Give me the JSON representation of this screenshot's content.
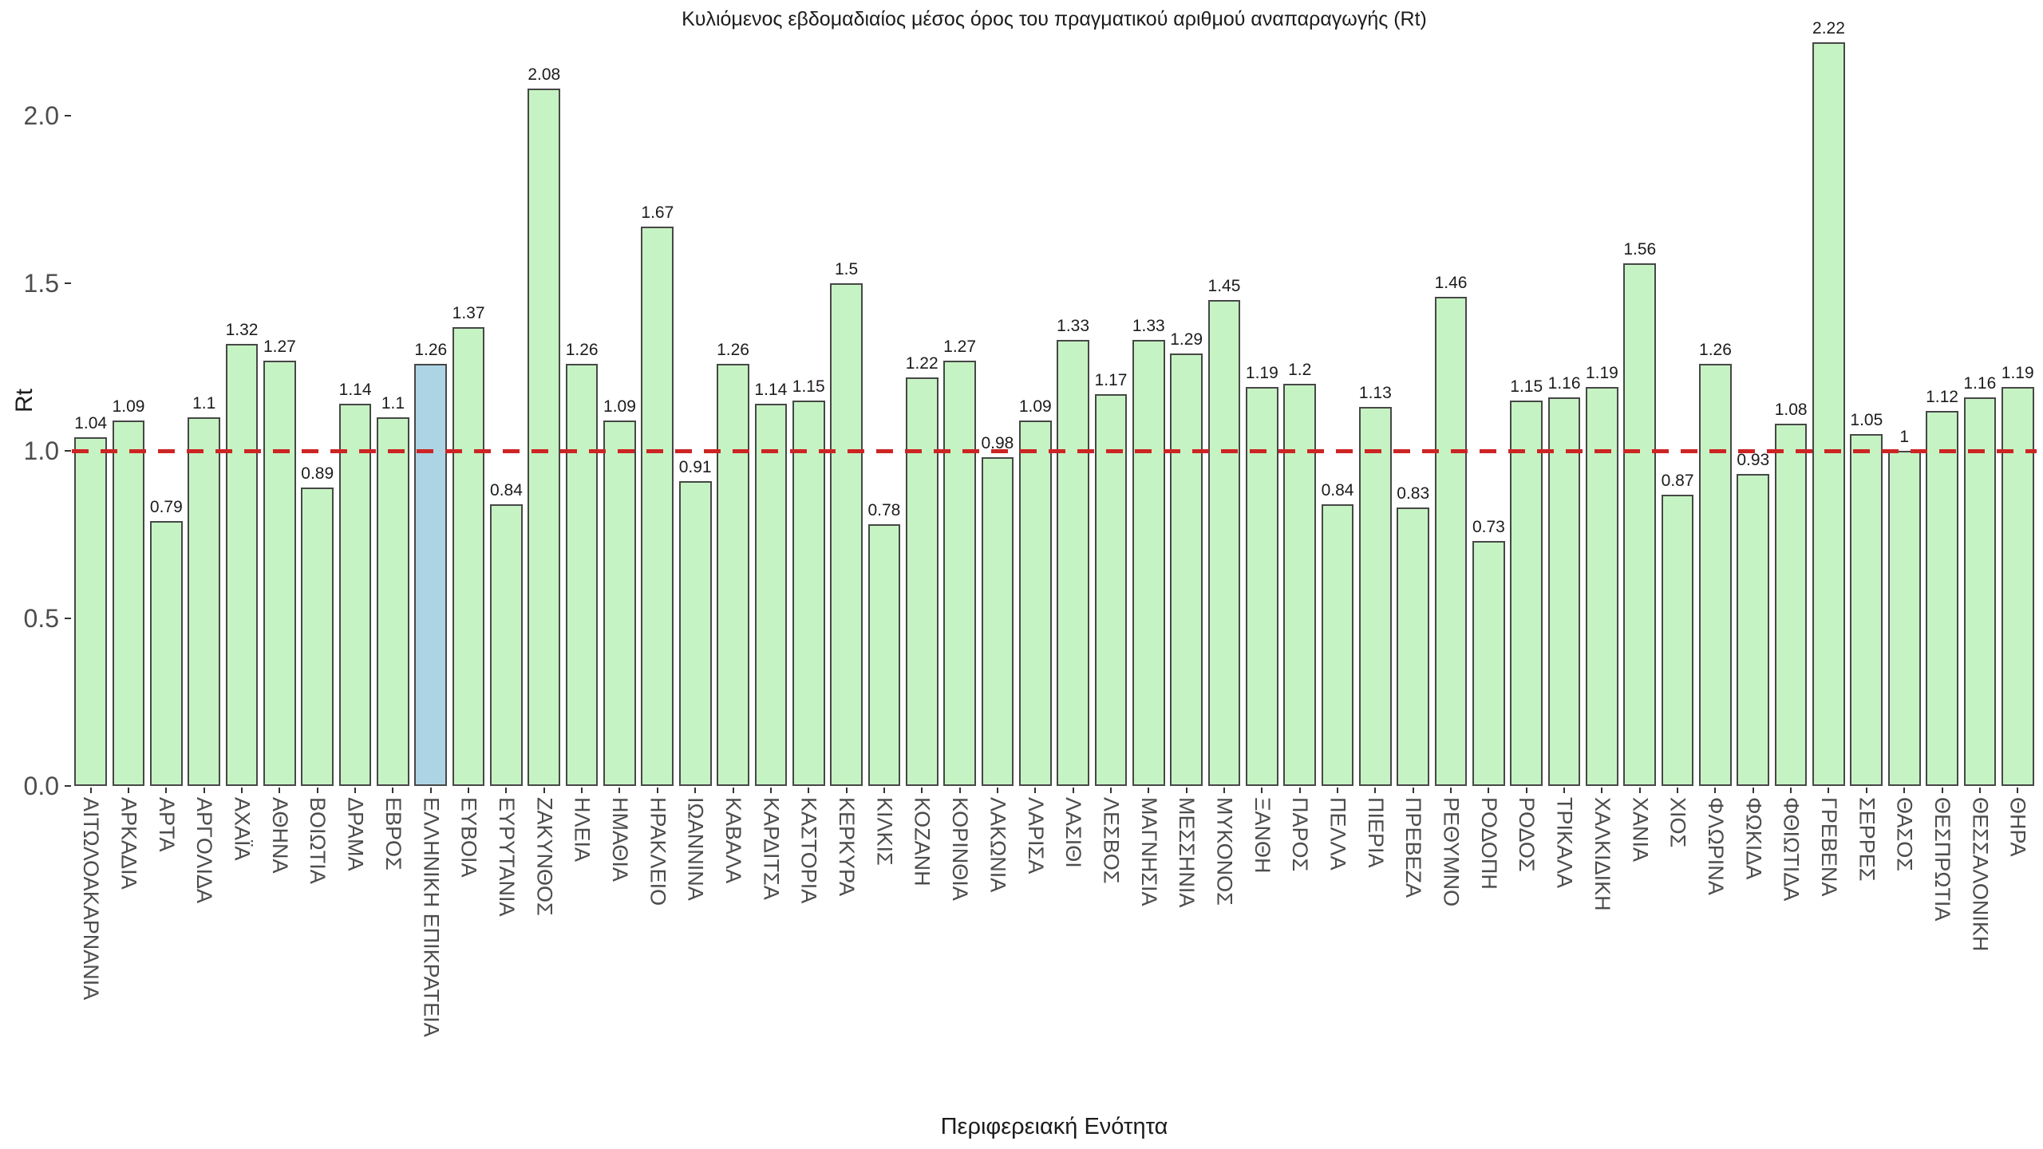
{
  "chart_data": {
    "type": "bar",
    "title": "Κυλιόμενος εβδομαδιαίος μέσος όρος του πραγματικού αριθμού αναπαραγωγής (Rt)",
    "xlabel": "Περιφερειακή Ενότητα",
    "ylabel": "Rt",
    "ylim": [
      0,
      2.3
    ],
    "yticks": [
      "0.0",
      "0.5",
      "1.0",
      "1.5",
      "2.0"
    ],
    "grid": false,
    "legend": "none",
    "reference_line": {
      "y": 1.0,
      "style": "dashed",
      "color": "#cd2424"
    },
    "categories": [
      "ΑΙΤΩΛΟΑΚΑΡΝΑΝΙΑ",
      "ΑΡΚΑΔΙΑ",
      "ΑΡΤΑ",
      "ΑΡΓΟΛΙΔΑ",
      "ΑΧΑΪΑ",
      "ΑΘΗΝΑ",
      "ΒΟΙΩΤΙΑ",
      "ΔΡΑΜΑ",
      "ΕΒΡΟΣ",
      "ΕΛΛΗΝΙΚΗ ΕΠΙΚΡΑΤΕΙΑ",
      "ΕΥΒΟΙΑ",
      "ΕΥΡΥΤΑΝΙΑ",
      "ΖΑΚΥΝΘΟΣ",
      "ΗΛΕΙΑ",
      "ΗΜΑΘΙΑ",
      "ΗΡΑΚΛΕΙΟ",
      "ΙΩΑΝΝΙΝΑ",
      "ΚΑΒΑΛΑ",
      "ΚΑΡΔΙΤΣΑ",
      "ΚΑΣΤΟΡΙΑ",
      "ΚΕΡΚΥΡΑ",
      "ΚΙΛΚΙΣ",
      "ΚΟΖΑΝΗ",
      "ΚΟΡΙΝΘΙΑ",
      "ΛΑΚΩΝΙΑ",
      "ΛΑΡΙΣΑ",
      "ΛΑΣΙΘΙ",
      "ΛΕΣΒΟΣ",
      "ΜΑΓΝΗΣΙΑ",
      "ΜΕΣΣΗΝΙΑ",
      "ΜΥΚΟΝΟΣ",
      "ΞΑΝΘΗ",
      "ΠΑΡΟΣ",
      "ΠΕΛΛΑ",
      "ΠΙΕΡΙΑ",
      "ΠΡΕΒΕΖΑ",
      "ΡΕΘΥΜΝΟ",
      "ΡΟΔΟΠΗ",
      "ΡΟΔΟΣ",
      "ΤΡΙΚΑΛΑ",
      "ΧΑΛΚΙΔΙΚΗ",
      "ΧΑΝΙΑ",
      "ΧΙΟΣ",
      "ΦΛΩΡΙΝΑ",
      "ΦΩΚΙΔΑ",
      "ΦΘΙΩΤΙΔΑ",
      "ΓΡΕΒΕΝΑ",
      "ΣΕΡΡΕΣ",
      "ΘΑΣΟΣ",
      "ΘΕΣΠΡΩΤΙΑ",
      "ΘΕΣΣΑΛΟΝΙΚΗ",
      "ΘΗΡΑ"
    ],
    "values": [
      1.04,
      1.09,
      0.79,
      1.1,
      1.32,
      1.27,
      0.89,
      1.14,
      1.1,
      1.26,
      1.37,
      0.84,
      2.08,
      1.26,
      1.09,
      1.67,
      0.91,
      1.26,
      1.14,
      1.15,
      1.5,
      0.78,
      1.22,
      1.27,
      0.98,
      1.09,
      1.33,
      1.17,
      1.33,
      1.29,
      1.45,
      1.19,
      1.2,
      0.84,
      1.13,
      0.83,
      1.46,
      0.73,
      1.15,
      1.16,
      1.19,
      1.56,
      0.87,
      1.26,
      0.93,
      1.08,
      2.22,
      1.05,
      1,
      1.12,
      1.16,
      1.19
    ],
    "value_labels": [
      "1.04",
      "1.09",
      "0.79",
      "1.1",
      "1.32",
      "1.27",
      "0.89",
      "1.14",
      "1.1",
      "1.26",
      "1.37",
      "0.84",
      "2.08",
      "1.26",
      "1.09",
      "1.67",
      "0.91",
      "1.26",
      "1.14",
      "1.15",
      "1.5",
      "0.78",
      "1.22",
      "1.27",
      "0.98",
      "1.09",
      "1.33",
      "1.17",
      "1.33",
      "1.29",
      "1.45",
      "1.19",
      "1.2",
      "0.84",
      "1.13",
      "0.83",
      "1.46",
      "0.73",
      "1.15",
      "1.16",
      "1.19",
      "1.56",
      "0.87",
      "1.26",
      "0.93",
      "1.08",
      "2.22",
      "1.05",
      "1",
      "1.12",
      "1.16",
      "1.19"
    ],
    "highlight_category": "ΕΛΛΗΝΙΚΗ ΕΠΙΚΡΑΤΕΙΑ",
    "highlight_index": 9,
    "colors": {
      "bar_fill": "#c6f3c3",
      "bar_highlight_fill": "#add4e4",
      "bar_border": "#474747",
      "reference_line": "#cd2424",
      "tick_text": "#4d4d4d",
      "text": "#1c1c1c",
      "background": "#ffffff"
    }
  }
}
